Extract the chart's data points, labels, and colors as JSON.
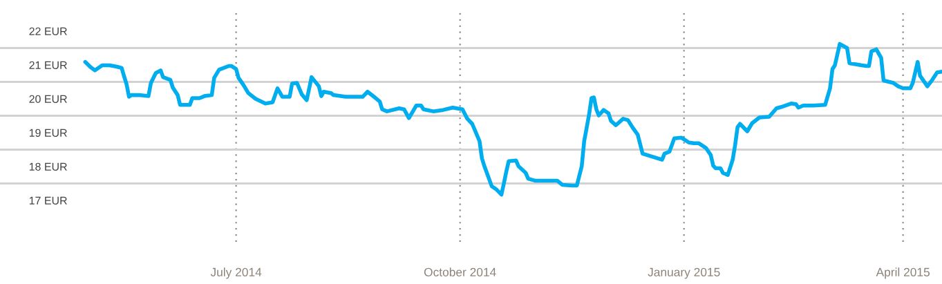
{
  "chart_data": {
    "type": "line",
    "x": [
      "2014-04-30",
      "2014-05-02",
      "2014-05-04",
      "2014-05-07",
      "2014-05-10",
      "2014-05-13",
      "2014-05-15",
      "2014-05-16",
      "2014-05-17",
      "2014-05-18",
      "2014-05-19",
      "2014-05-22",
      "2014-05-26",
      "2014-05-27",
      "2014-05-29",
      "2014-05-31",
      "2014-06-01",
      "2014-06-04",
      "2014-06-05",
      "2014-06-07",
      "2014-06-08",
      "2014-06-12",
      "2014-06-13",
      "2014-06-16",
      "2014-06-18",
      "2014-06-21",
      "2014-06-22",
      "2014-06-24",
      "2014-06-28",
      "2014-06-29",
      "2014-07-01",
      "2014-07-02",
      "2014-07-04",
      "2014-07-06",
      "2014-07-09",
      "2014-07-13",
      "2014-07-16",
      "2014-07-18",
      "2014-07-20",
      "2014-07-23",
      "2014-07-24",
      "2014-07-26",
      "2014-07-28",
      "2014-07-30",
      "2014-08-01",
      "2014-08-04",
      "2014-08-05",
      "2014-08-06",
      "2014-08-09",
      "2014-08-10",
      "2014-08-15",
      "2014-08-22",
      "2014-08-24",
      "2014-08-27",
      "2014-08-29",
      "2014-08-30",
      "2014-09-01",
      "2014-09-06",
      "2014-09-08",
      "2014-09-10",
      "2014-09-13",
      "2014-09-15",
      "2014-09-16",
      "2014-09-20",
      "2014-09-24",
      "2014-09-28",
      "2014-10-02",
      "2014-10-04",
      "2014-10-06",
      "2014-10-09",
      "2014-10-10",
      "2014-10-11",
      "2014-10-13",
      "2014-10-14",
      "2014-10-16",
      "2014-10-18",
      "2014-10-19",
      "2014-10-20",
      "2014-10-21",
      "2014-10-24",
      "2014-10-25",
      "2014-10-28",
      "2014-10-29",
      "2014-11-01",
      "2014-11-10",
      "2014-11-12",
      "2014-11-16",
      "2014-11-18",
      "2014-11-19",
      "2014-11-20",
      "2014-11-21",
      "2014-11-22",
      "2014-11-23",
      "2014-11-24",
      "2014-11-25",
      "2014-11-26",
      "2014-11-27",
      "2014-11-29",
      "2014-12-01",
      "2014-12-02",
      "2014-12-04",
      "2014-12-07",
      "2014-12-09",
      "2014-12-11",
      "2014-12-13",
      "2014-12-15",
      "2014-12-23",
      "2014-12-24",
      "2014-12-26",
      "2014-12-27",
      "2014-12-28",
      "2014-12-31",
      "2015-01-03",
      "2015-01-05",
      "2015-01-07",
      "2015-01-10",
      "2015-01-12",
      "2015-01-13",
      "2015-01-14",
      "2015-01-16",
      "2015-01-17",
      "2015-01-19",
      "2015-01-21",
      "2015-01-22",
      "2015-01-23",
      "2015-01-24",
      "2015-01-27",
      "2015-01-29",
      "2015-02-01",
      "2015-02-05",
      "2015-02-08",
      "2015-02-10",
      "2015-02-14",
      "2015-02-16",
      "2015-02-17",
      "2015-02-19",
      "2015-02-23",
      "2015-02-28",
      "2015-03-02",
      "2015-03-03",
      "2015-03-04",
      "2015-03-06",
      "2015-03-09",
      "2015-03-10",
      "2015-03-15",
      "2015-03-17",
      "2015-03-18",
      "2015-03-19",
      "2015-03-21",
      "2015-03-23",
      "2015-03-24",
      "2015-03-28",
      "2015-03-30",
      "2015-04-01",
      "2015-04-04",
      "2015-04-05",
      "2015-04-07",
      "2015-04-08",
      "2015-04-11",
      "2015-04-13",
      "2015-04-15",
      "2015-04-17"
    ],
    "series": [
      {
        "color": "#00aeef",
        "values": [
          21.09,
          20.95,
          20.84,
          20.99,
          20.99,
          20.95,
          20.91,
          20.66,
          20.43,
          20.06,
          20.11,
          20.11,
          20.08,
          20.47,
          20.76,
          20.84,
          20.64,
          20.56,
          20.33,
          20.11,
          19.82,
          19.82,
          20.02,
          20.02,
          20.08,
          20.11,
          20.62,
          20.86,
          20.97,
          20.97,
          20.88,
          20.62,
          20.41,
          20.17,
          20.0,
          19.86,
          19.9,
          20.31,
          20.06,
          20.06,
          20.45,
          20.47,
          20.13,
          19.96,
          20.64,
          20.37,
          20.08,
          20.21,
          20.17,
          20.11,
          20.06,
          20.06,
          20.21,
          20.04,
          19.92,
          19.69,
          19.63,
          19.72,
          19.69,
          19.43,
          19.8,
          19.8,
          19.69,
          19.63,
          19.67,
          19.74,
          19.69,
          19.41,
          19.26,
          18.75,
          18.24,
          18.01,
          17.62,
          17.42,
          17.32,
          17.17,
          17.5,
          17.85,
          18.16,
          18.18,
          18.01,
          17.81,
          17.64,
          17.58,
          17.58,
          17.46,
          17.44,
          17.44,
          17.73,
          18.01,
          18.75,
          19.14,
          19.53,
          20.02,
          20.04,
          19.69,
          19.51,
          19.67,
          19.57,
          19.35,
          19.22,
          19.41,
          19.37,
          19.14,
          18.94,
          18.38,
          18.2,
          18.38,
          18.44,
          18.63,
          18.83,
          18.85,
          18.71,
          18.69,
          18.69,
          18.55,
          18.34,
          18.03,
          17.95,
          17.95,
          17.81,
          17.75,
          18.2,
          18.63,
          19.16,
          19.26,
          19.04,
          19.28,
          19.45,
          19.47,
          19.72,
          19.76,
          19.86,
          19.84,
          19.74,
          19.8,
          19.8,
          19.82,
          20.31,
          20.88,
          20.99,
          21.62,
          21.5,
          21.05,
          20.99,
          20.97,
          20.97,
          21.4,
          21.46,
          21.21,
          20.54,
          20.47,
          20.37,
          20.31,
          20.31,
          20.47,
          21.09,
          20.68,
          20.37,
          20.56,
          20.78,
          20.8
        ]
      }
    ],
    "xlim": [
      "2014-03-26",
      "2015-04-17"
    ],
    "xticks": [
      {
        "value": "2014-07-01",
        "label": "July 2014"
      },
      {
        "value": "2014-10-01",
        "label": "October 2014"
      },
      {
        "value": "2015-01-01",
        "label": "January 2015"
      },
      {
        "value": "2015-04-01",
        "label": "April 2015"
      }
    ],
    "ylim": [
      17,
      22
    ],
    "yticks": [
      {
        "value": 17,
        "label": "17 EUR"
      },
      {
        "value": 18,
        "label": "18 EUR"
      },
      {
        "value": 19,
        "label": "19 EUR"
      },
      {
        "value": 20,
        "label": "20 EUR"
      },
      {
        "value": 21,
        "label": "21 EUR"
      },
      {
        "value": 22,
        "label": "22 EUR"
      }
    ],
    "ref_lines": [
      {
        "axis": "y",
        "value": 21.5,
        "color": "#d2d2d2"
      },
      {
        "axis": "y",
        "value": 20.5,
        "color": "#d2d2d2"
      },
      {
        "axis": "y",
        "value": 19.5,
        "color": "#d2d2d2"
      },
      {
        "axis": "y",
        "value": 18.5,
        "color": "#d2d2d2"
      },
      {
        "axis": "y",
        "value": 17.5,
        "color": "#d2d2d2"
      }
    ],
    "grid": "x",
    "marker": "none",
    "line_style": "solid"
  }
}
